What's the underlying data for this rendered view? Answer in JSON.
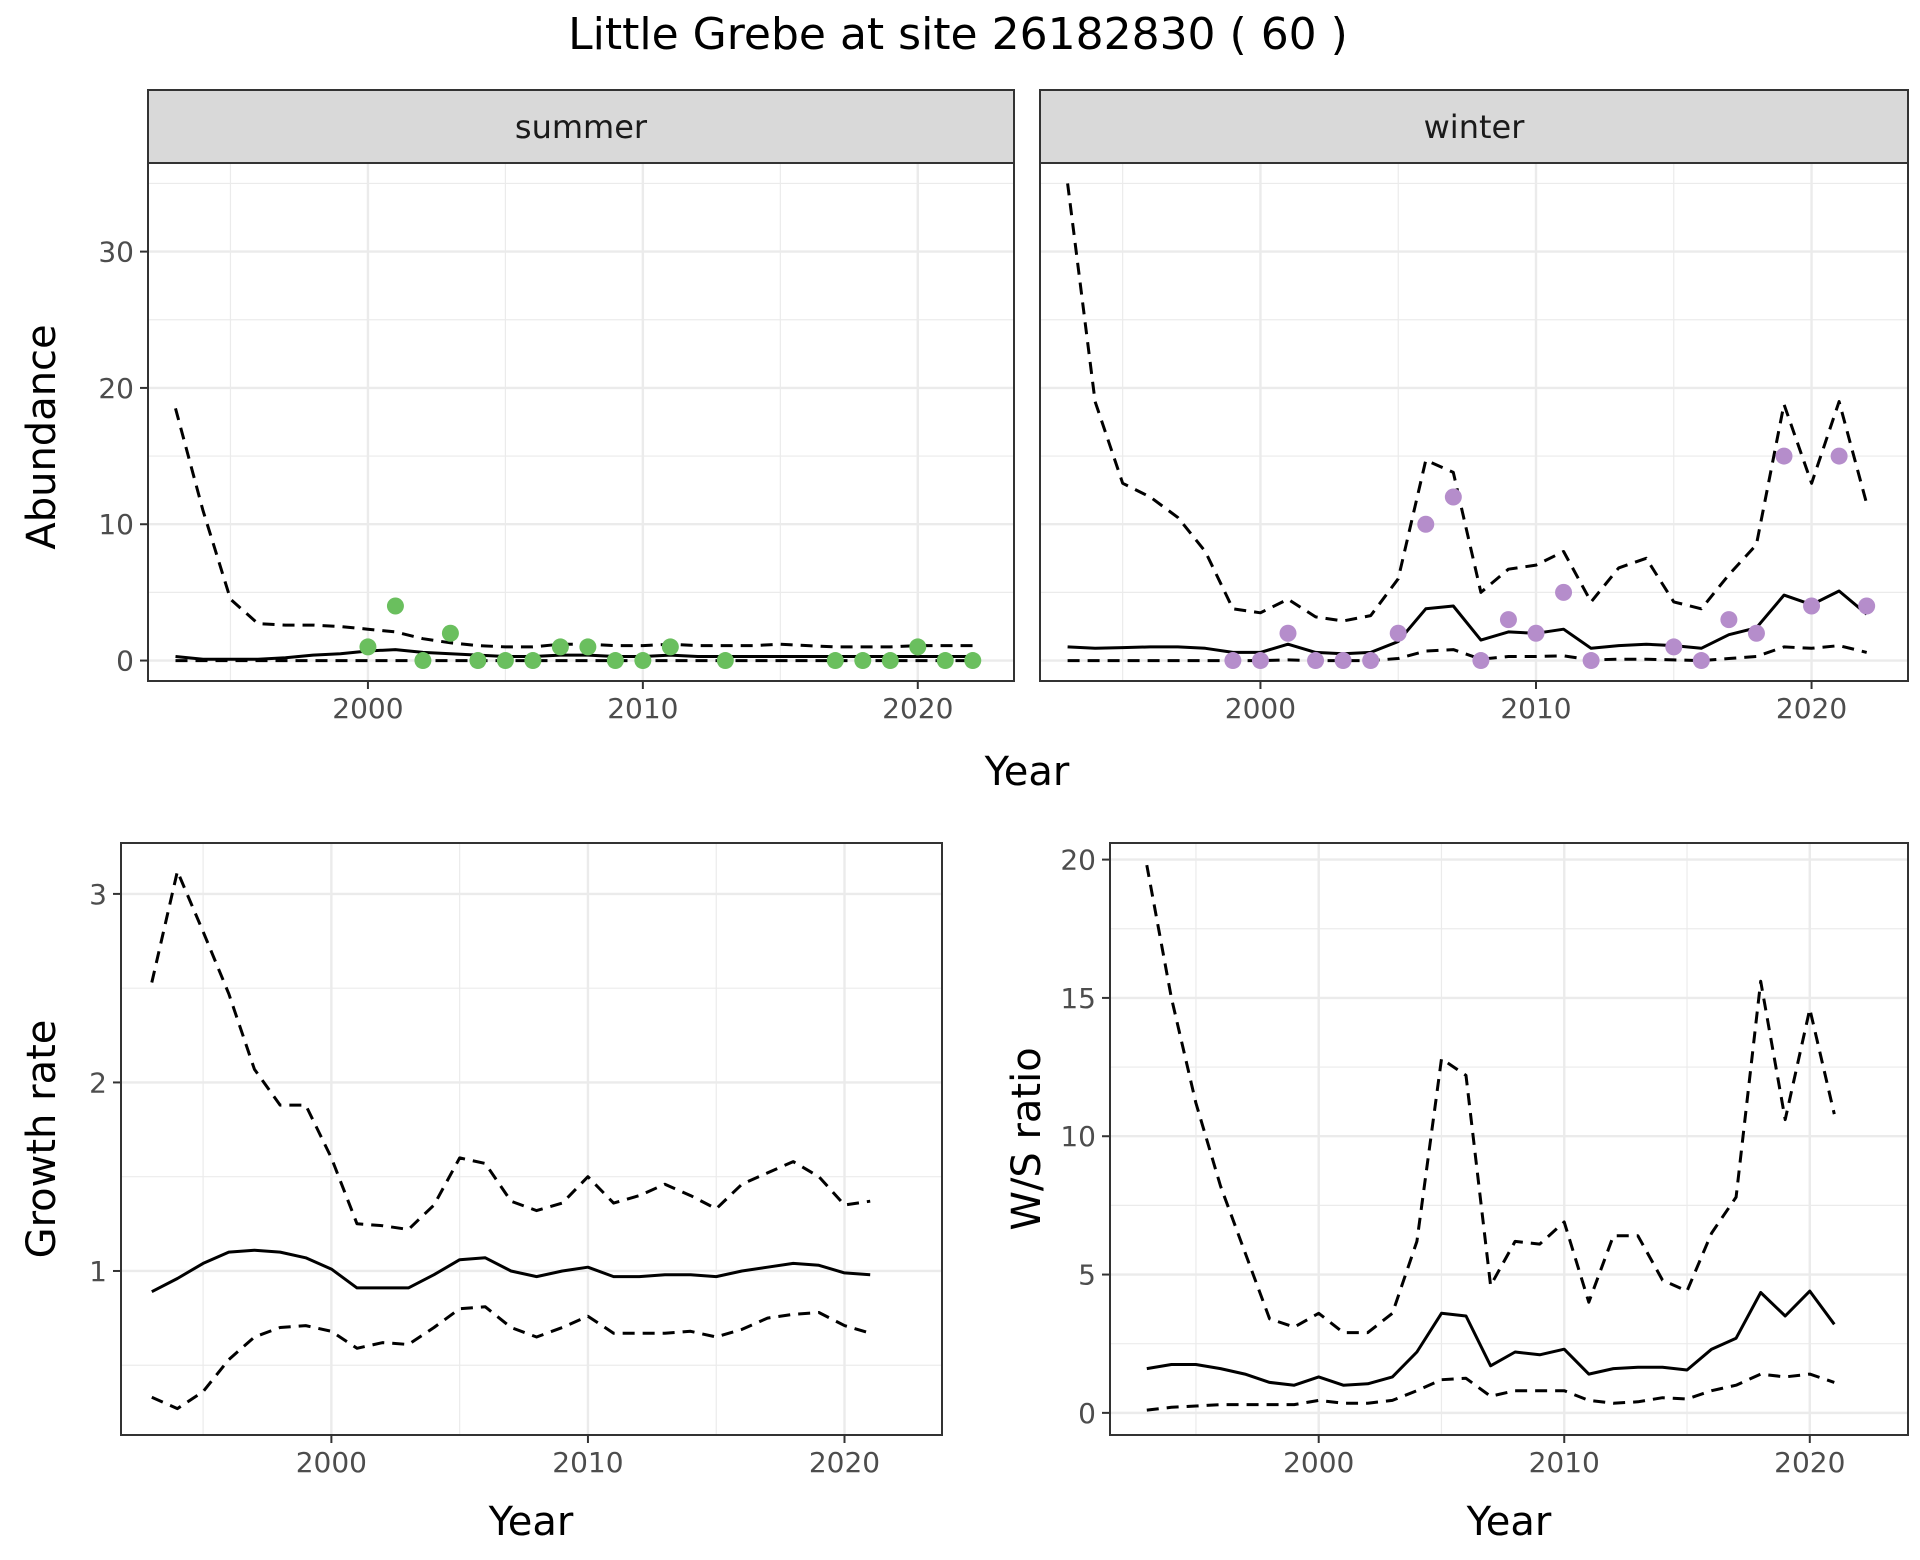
{
  "title": "Little Grebe at site 26182830 ( 60 )",
  "colors": {
    "summer_points": "#6abf5e",
    "winter_points": "#b58dcb",
    "lines": "#000000",
    "strip_fill": "#d9d9d9",
    "grid": "#ebebeb",
    "panel_border": "#333333"
  },
  "chart_data": [
    {
      "type": "line",
      "facet": "summer",
      "xlabel": "Year",
      "ylabel": "Abundance",
      "xlim": [
        1992,
        2023.5
      ],
      "ylim": [
        -1.5,
        36.5
      ],
      "xticks": [
        2000,
        2010,
        2020
      ],
      "yticks": [
        0,
        10,
        20,
        30
      ],
      "grid": true,
      "series": [
        {
          "role": "mean",
          "style": "solid",
          "x": [
            1993,
            1994,
            1995,
            1996,
            1997,
            1998,
            1999,
            2000,
            2001,
            2002,
            2003,
            2004,
            2005,
            2006,
            2007,
            2008,
            2009,
            2010,
            2011,
            2012,
            2013,
            2014,
            2015,
            2016,
            2017,
            2018,
            2019,
            2020,
            2021,
            2022
          ],
          "y": [
            0.3,
            0.1,
            0.1,
            0.1,
            0.2,
            0.4,
            0.5,
            0.7,
            0.8,
            0.6,
            0.5,
            0.4,
            0.3,
            0.3,
            0.4,
            0.4,
            0.3,
            0.3,
            0.4,
            0.3,
            0.3,
            0.3,
            0.3,
            0.3,
            0.3,
            0.3,
            0.3,
            0.3,
            0.3,
            0.3
          ]
        },
        {
          "role": "upper",
          "style": "dashed",
          "x": [
            1993,
            1994,
            1995,
            1996,
            1997,
            1998,
            1999,
            2000,
            2001,
            2002,
            2003,
            2004,
            2005,
            2006,
            2007,
            2008,
            2009,
            2010,
            2011,
            2012,
            2013,
            2014,
            2015,
            2016,
            2017,
            2018,
            2019,
            2020,
            2021,
            2022
          ],
          "y": [
            18.5,
            11,
            4.5,
            2.7,
            2.6,
            2.6,
            2.5,
            2.3,
            2.1,
            1.6,
            1.3,
            1.1,
            1.0,
            1.0,
            1.2,
            1.2,
            1.1,
            1.1,
            1.2,
            1.1,
            1.1,
            1.1,
            1.2,
            1.1,
            1.0,
            1.0,
            1.0,
            1.1,
            1.1,
            1.1
          ]
        },
        {
          "role": "lower",
          "style": "dashed",
          "x": [
            1993,
            2022
          ],
          "y": [
            0,
            0
          ]
        }
      ],
      "points": {
        "x": [
          2000,
          2001,
          2002,
          2003,
          2004,
          2005,
          2006,
          2007,
          2008,
          2009,
          2010,
          2011,
          2013,
          2017,
          2018,
          2019,
          2020,
          2021,
          2022
        ],
        "y": [
          1,
          4,
          0,
          2,
          0,
          0,
          0,
          1,
          1,
          0,
          0,
          1,
          0,
          0,
          0,
          0,
          1,
          0,
          0
        ]
      }
    },
    {
      "type": "line",
      "facet": "winter",
      "xlabel": "Year",
      "ylabel": "Abundance",
      "xlim": [
        1992,
        2023.5
      ],
      "ylim": [
        -1.5,
        36.5
      ],
      "xticks": [
        2000,
        2010,
        2020
      ],
      "yticks": [
        0,
        10,
        20,
        30
      ],
      "grid": true,
      "series": [
        {
          "role": "mean",
          "style": "solid",
          "x": [
            1993,
            1994,
            1995,
            1996,
            1997,
            1998,
            1999,
            2000,
            2001,
            2002,
            2003,
            2004,
            2005,
            2006,
            2007,
            2008,
            2009,
            2010,
            2011,
            2012,
            2013,
            2014,
            2015,
            2016,
            2017,
            2018,
            2019,
            2020,
            2021,
            2022
          ],
          "y": [
            1.0,
            0.9,
            0.95,
            1.0,
            1.0,
            0.9,
            0.6,
            0.6,
            1.2,
            0.6,
            0.5,
            0.6,
            1.4,
            3.8,
            4.0,
            1.5,
            2.1,
            2.0,
            2.3,
            0.9,
            1.1,
            1.2,
            1.1,
            0.9,
            1.9,
            2.4,
            4.8,
            4.1,
            5.1,
            3.4
          ]
        },
        {
          "role": "upper",
          "style": "dashed",
          "x": [
            1993,
            1994,
            1995,
            1996,
            1997,
            1998,
            1999,
            2000,
            2001,
            2002,
            2003,
            2004,
            2005,
            2006,
            2007,
            2008,
            2009,
            2010,
            2011,
            2012,
            2013,
            2014,
            2015,
            2016,
            2017,
            2018,
            2019,
            2020,
            2021,
            2022
          ],
          "y": [
            35,
            19,
            13,
            12,
            10.5,
            8,
            3.8,
            3.5,
            4.5,
            3.2,
            2.9,
            3.3,
            6,
            14.7,
            13.8,
            5,
            6.7,
            7,
            8,
            4.3,
            6.8,
            7.5,
            4.3,
            3.8,
            6.3,
            8.5,
            18.8,
            13,
            19,
            11.5
          ]
        },
        {
          "role": "lower",
          "style": "dashed",
          "x": [
            1993,
            1994,
            1995,
            1996,
            1997,
            1998,
            1999,
            2000,
            2001,
            2002,
            2003,
            2004,
            2005,
            2006,
            2007,
            2008,
            2009,
            2010,
            2011,
            2012,
            2013,
            2014,
            2015,
            2016,
            2017,
            2018,
            2019,
            2020,
            2021,
            2022
          ],
          "y": [
            0,
            0,
            0,
            0,
            0,
            0,
            0,
            0,
            0.05,
            0,
            0,
            0,
            0.15,
            0.7,
            0.8,
            0.1,
            0.3,
            0.3,
            0.35,
            0.05,
            0.1,
            0.1,
            0.05,
            0,
            0.15,
            0.3,
            1.0,
            0.9,
            1.1,
            0.6
          ]
        }
      ],
      "points": {
        "x": [
          1999,
          2000,
          2001,
          2002,
          2003,
          2004,
          2005,
          2006,
          2007,
          2008,
          2009,
          2010,
          2011,
          2012,
          2015,
          2016,
          2017,
          2018,
          2019,
          2020,
          2021,
          2022
        ],
        "y": [
          0,
          0,
          2,
          0,
          0,
          0,
          2,
          10,
          12,
          0,
          3,
          2,
          5,
          0,
          1,
          0,
          3,
          2,
          15,
          4,
          15,
          4
        ]
      }
    },
    {
      "type": "line",
      "facet": "",
      "xlabel": "Year",
      "ylabel": "Growth rate",
      "xlim": [
        1991.8,
        2023.8
      ],
      "ylim": [
        0.13,
        3.27
      ],
      "xticks": [
        2000,
        2010,
        2020
      ],
      "yticks": [
        1,
        2,
        3
      ],
      "grid": true,
      "series": [
        {
          "role": "mean",
          "style": "solid",
          "x": [
            1993,
            1994,
            1995,
            1996,
            1997,
            1998,
            1999,
            2000,
            2001,
            2002,
            2003,
            2004,
            2005,
            2006,
            2007,
            2008,
            2009,
            2010,
            2011,
            2012,
            2013,
            2014,
            2015,
            2016,
            2017,
            2018,
            2019,
            2020,
            2021
          ],
          "y": [
            0.89,
            0.96,
            1.04,
            1.1,
            1.11,
            1.1,
            1.07,
            1.01,
            0.91,
            0.91,
            0.91,
            0.98,
            1.06,
            1.07,
            1.0,
            0.97,
            1.0,
            1.02,
            0.97,
            0.97,
            0.98,
            0.98,
            0.97,
            1.0,
            1.02,
            1.04,
            1.03,
            0.99,
            0.98
          ]
        },
        {
          "role": "upper",
          "style": "dashed",
          "x": [
            1993,
            1994,
            1995,
            1996,
            1997,
            1998,
            1999,
            2000,
            2001,
            2002,
            2003,
            2004,
            2005,
            2006,
            2007,
            2008,
            2009,
            2010,
            2011,
            2012,
            2013,
            2014,
            2015,
            2016,
            2017,
            2018,
            2019,
            2020,
            2021
          ],
          "y": [
            2.53,
            3.12,
            2.8,
            2.47,
            2.07,
            1.88,
            1.88,
            1.6,
            1.25,
            1.24,
            1.22,
            1.35,
            1.6,
            1.57,
            1.37,
            1.32,
            1.36,
            1.5,
            1.36,
            1.4,
            1.46,
            1.4,
            1.33,
            1.46,
            1.52,
            1.58,
            1.5,
            1.35,
            1.37
          ]
        },
        {
          "role": "lower",
          "style": "dashed",
          "x": [
            1993,
            1994,
            1995,
            1996,
            1997,
            1998,
            1999,
            2000,
            2001,
            2002,
            2003,
            2004,
            2005,
            2006,
            2007,
            2008,
            2009,
            2010,
            2011,
            2012,
            2013,
            2014,
            2015,
            2016,
            2017,
            2018,
            2019,
            2020,
            2021
          ],
          "y": [
            0.33,
            0.27,
            0.36,
            0.53,
            0.65,
            0.7,
            0.71,
            0.68,
            0.59,
            0.62,
            0.61,
            0.7,
            0.8,
            0.81,
            0.7,
            0.65,
            0.7,
            0.76,
            0.67,
            0.67,
            0.67,
            0.68,
            0.65,
            0.69,
            0.75,
            0.77,
            0.78,
            0.71,
            0.67
          ]
        }
      ]
    },
    {
      "type": "line",
      "facet": "",
      "xlabel": "Year",
      "ylabel": "W/S ratio",
      "xlim": [
        1991.5,
        2024
      ],
      "ylim": [
        -0.8,
        20.6
      ],
      "xticks": [
        2000,
        2010,
        2020
      ],
      "yticks": [
        0,
        5,
        10,
        15,
        20
      ],
      "grid": true,
      "series": [
        {
          "role": "mean",
          "style": "solid",
          "x": [
            1993,
            1994,
            1995,
            1996,
            1997,
            1998,
            1999,
            2000,
            2001,
            2002,
            2003,
            2004,
            2005,
            2006,
            2007,
            2008,
            2009,
            2010,
            2011,
            2012,
            2013,
            2014,
            2015,
            2016,
            2017,
            2018,
            2019,
            2020,
            2021
          ],
          "y": [
            1.6,
            1.75,
            1.75,
            1.6,
            1.4,
            1.1,
            1.0,
            1.3,
            1.0,
            1.05,
            1.3,
            2.2,
            3.6,
            3.5,
            1.7,
            2.2,
            2.1,
            2.3,
            1.4,
            1.6,
            1.65,
            1.65,
            1.55,
            2.3,
            2.7,
            4.35,
            3.5,
            4.4,
            3.2
          ]
        },
        {
          "role": "upper",
          "style": "dashed",
          "x": [
            1993,
            1994,
            1995,
            1996,
            1997,
            1998,
            1999,
            2000,
            2001,
            2002,
            2003,
            2004,
            2005,
            2006,
            2007,
            2008,
            2009,
            2010,
            2011,
            2012,
            2013,
            2014,
            2015,
            2016,
            2017,
            2018,
            2019,
            2020,
            2021
          ],
          "y": [
            19.8,
            15,
            11.2,
            8.2,
            5.8,
            3.4,
            3.1,
            3.6,
            2.9,
            2.9,
            3.6,
            6.2,
            12.8,
            12.2,
            4.6,
            6.2,
            6.1,
            6.9,
            4.0,
            6.4,
            6.4,
            4.8,
            4.4,
            6.5,
            7.8,
            15.6,
            10.6,
            14.6,
            10.8
          ]
        },
        {
          "role": "lower",
          "style": "dashed",
          "x": [
            1993,
            1994,
            1995,
            1996,
            1997,
            1998,
            1999,
            2000,
            2001,
            2002,
            2003,
            2004,
            2005,
            2006,
            2007,
            2008,
            2009,
            2010,
            2011,
            2012,
            2013,
            2014,
            2015,
            2016,
            2017,
            2018,
            2019,
            2020,
            2021
          ],
          "y": [
            0.1,
            0.2,
            0.25,
            0.3,
            0.3,
            0.3,
            0.3,
            0.45,
            0.35,
            0.35,
            0.45,
            0.8,
            1.2,
            1.25,
            0.6,
            0.8,
            0.8,
            0.8,
            0.45,
            0.35,
            0.4,
            0.55,
            0.5,
            0.8,
            1.0,
            1.4,
            1.3,
            1.4,
            1.1
          ]
        }
      ]
    }
  ]
}
